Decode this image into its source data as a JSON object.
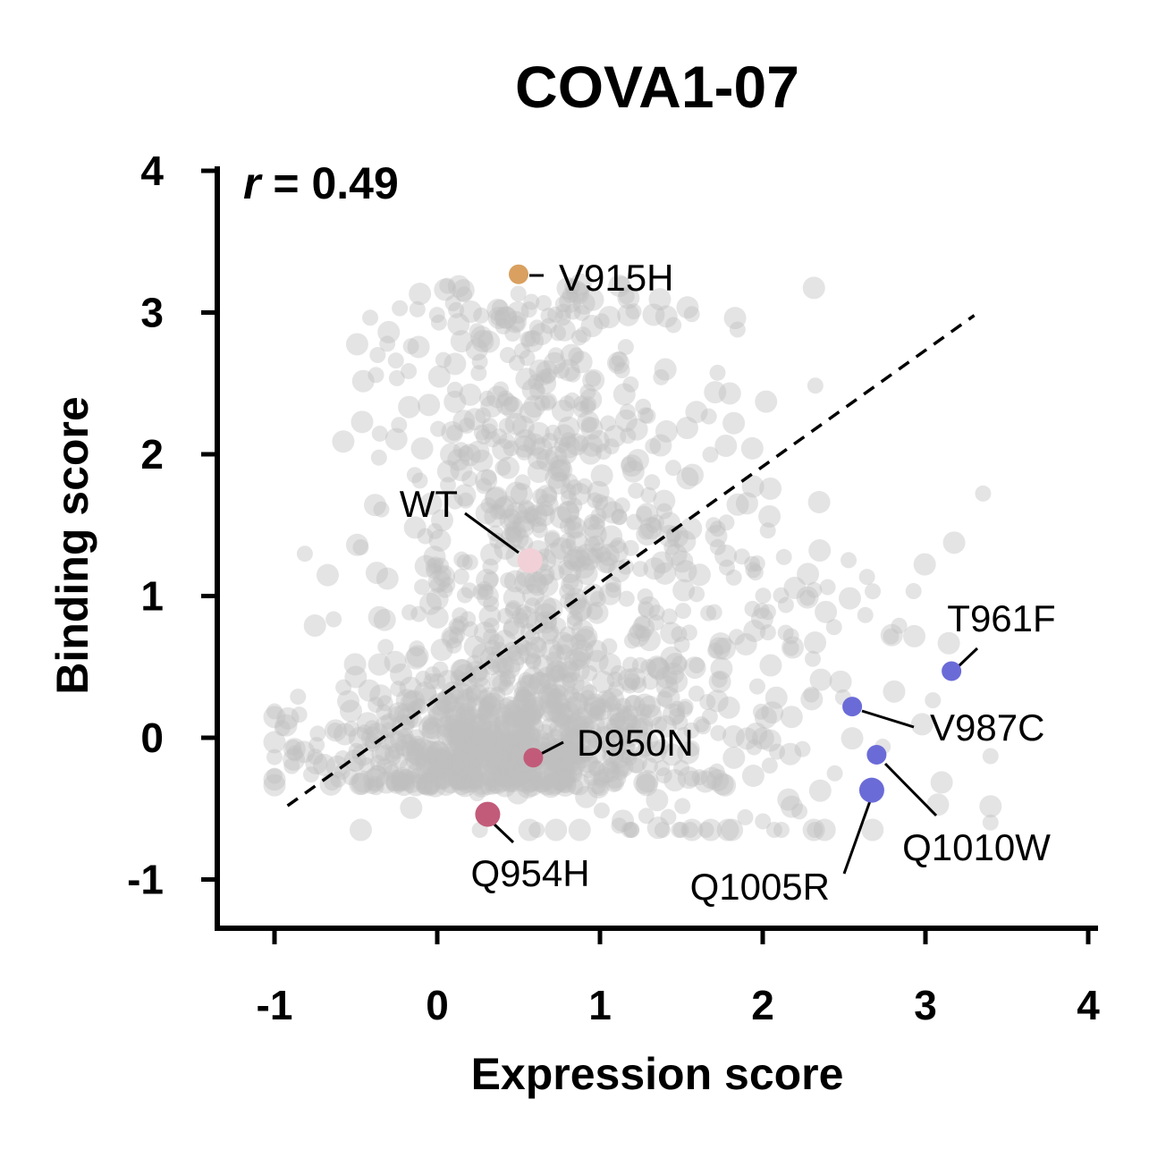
{
  "chart_data": {
    "type": "scatter",
    "title": "COVA1-07",
    "xlabel": "Expression score",
    "ylabel": "Binding score",
    "xlim": [
      -1.35,
      4.05
    ],
    "ylim": [
      -1.35,
      4.05
    ],
    "xticks": [
      "-1",
      "0",
      "1",
      "2",
      "3",
      "4"
    ],
    "yticks": [
      "-1",
      "0",
      "1",
      "2",
      "3",
      "4"
    ],
    "xtick_values": [
      -1,
      0,
      1,
      2,
      3,
      4
    ],
    "ytick_values": [
      -1,
      0,
      1,
      2,
      3,
      4
    ],
    "correlation": {
      "symbol": "r",
      "text": " = 0.49",
      "value": 0.49
    },
    "fit_line": {
      "x": [
        -0.92,
        3.3
      ],
      "y": [
        -0.48,
        2.98
      ],
      "style": "dashed"
    },
    "background_color": "#bfbfbf",
    "background_n": 1500,
    "highlighted": [
      {
        "name": "V915H",
        "x": 0.5,
        "y": 3.27,
        "color": "#d9a060",
        "size": "small"
      },
      {
        "name": "WT",
        "x": 0.57,
        "y": 1.25,
        "color": "#f2d0d8",
        "size": "large"
      },
      {
        "name": "D950N",
        "x": 0.59,
        "y": -0.14,
        "color": "#c25b7a",
        "size": "small"
      },
      {
        "name": "Q954H",
        "x": 0.31,
        "y": -0.54,
        "color": "#c25b7a",
        "size": "large"
      },
      {
        "name": "T961F",
        "x": 3.16,
        "y": 0.47,
        "color": "#6b6bd8",
        "size": "small"
      },
      {
        "name": "V987C",
        "x": 2.55,
        "y": 0.22,
        "color": "#6b6bd8",
        "size": "small"
      },
      {
        "name": "Q1010W",
        "x": 2.7,
        "y": -0.12,
        "color": "#6b6bd8",
        "size": "small"
      },
      {
        "name": "Q1005R",
        "x": 2.67,
        "y": -0.37,
        "color": "#6b6bd8",
        "size": "large"
      }
    ]
  }
}
